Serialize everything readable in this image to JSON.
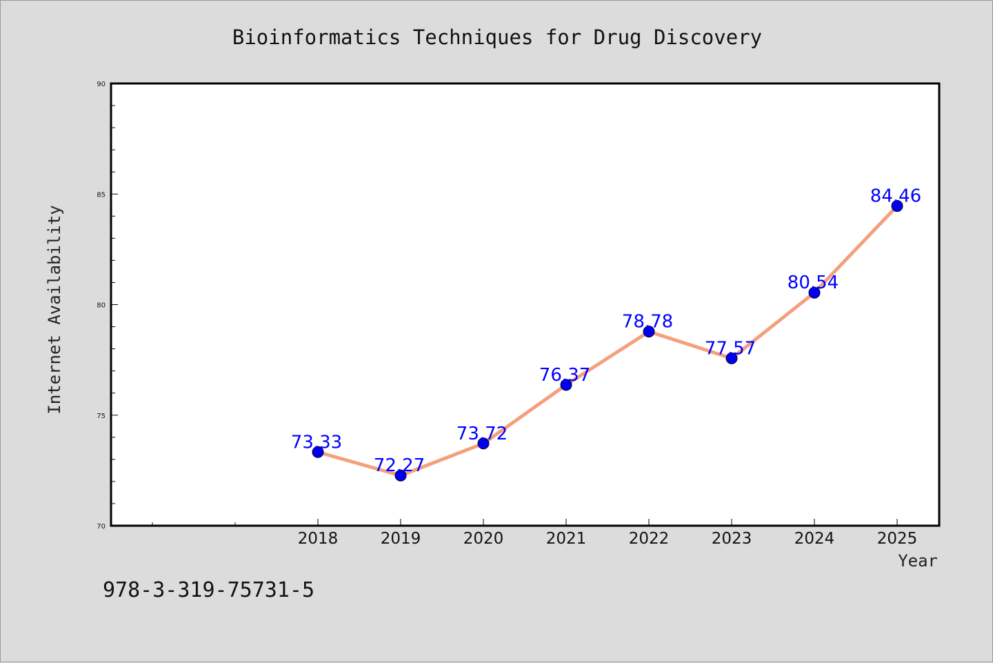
{
  "chart_data": {
    "type": "line",
    "title": "Bioinformatics Techniques for Drug Discovery",
    "xlabel": "Year",
    "ylabel": "Internet Availability",
    "x": [
      "2018",
      "2019",
      "2020",
      "2021",
      "2022",
      "2023",
      "2024",
      "2025"
    ],
    "series": [
      {
        "values": [
          73.33,
          72.27,
          73.72,
          76.37,
          78.78,
          77.57,
          80.54,
          84.46
        ]
      }
    ],
    "data_labels": [
      "73.33",
      "72.27",
      "73.72",
      "76.37",
      "78.78",
      "77.57",
      "80.54",
      "84.46"
    ],
    "ylim": [
      70,
      90
    ],
    "yticks": [
      70,
      75,
      80,
      85,
      90
    ],
    "ytick_labels": [
      "70",
      "75",
      "80",
      "85",
      "90"
    ],
    "xlim_note": "categories start after two empty slots",
    "grid": false,
    "legend": "none",
    "line_color": "#f4a07e",
    "marker_color": "#0000ee",
    "label_color": "#0000ff"
  },
  "footer": {
    "isbn": "978-3-319-75731-5"
  }
}
